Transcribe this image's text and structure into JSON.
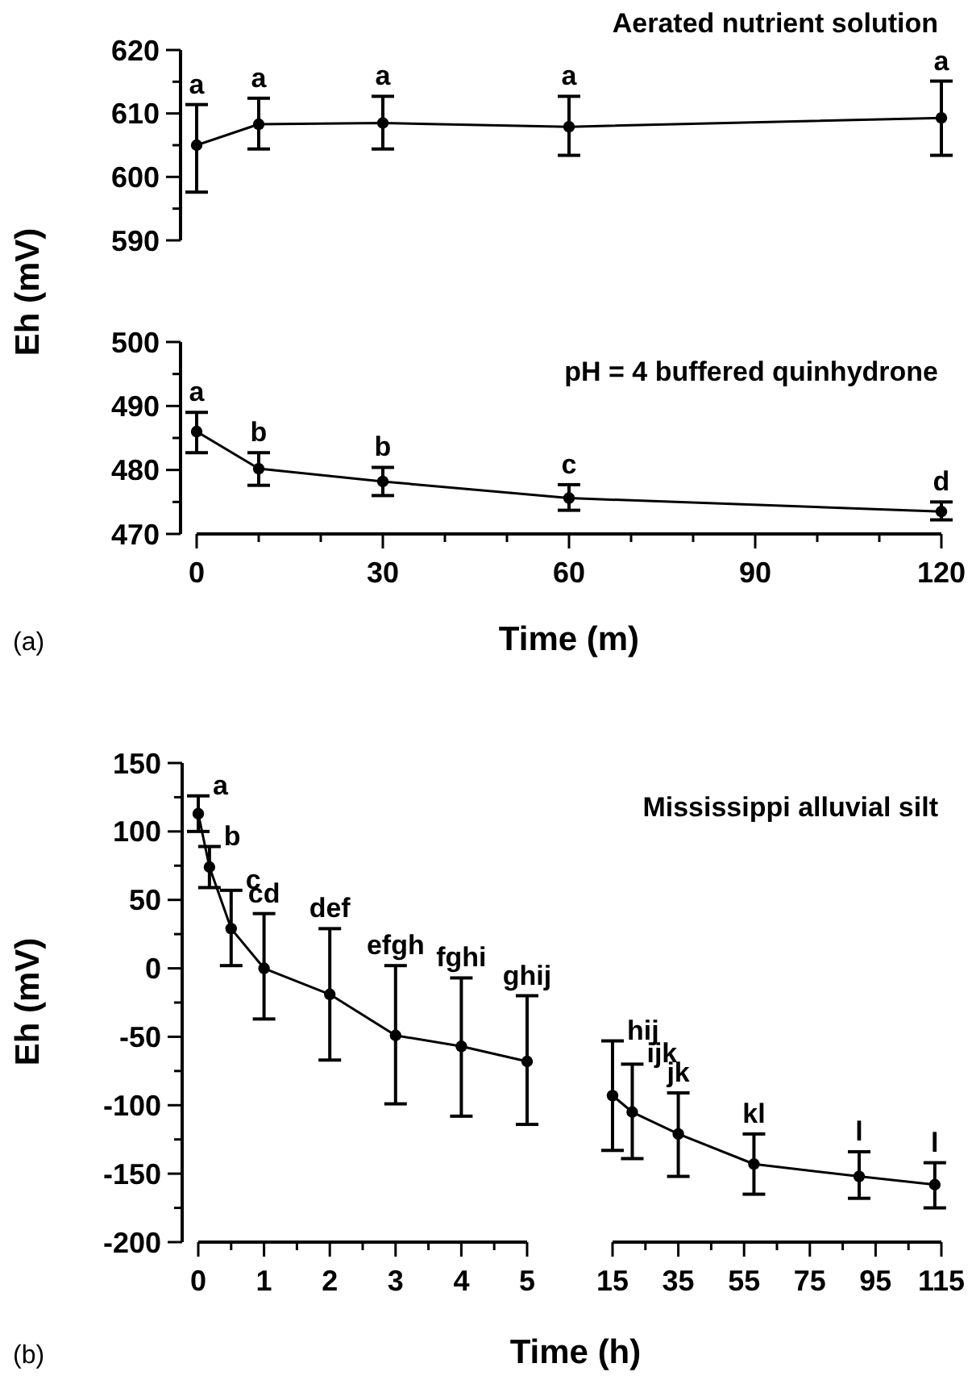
{
  "chart_data": [
    {
      "type": "line",
      "title": "Aerated nutrient solution",
      "ylabel": "Eh (mV)",
      "x": [
        0,
        10,
        30,
        60,
        120
      ],
      "series": [
        {
          "color": "#000000",
          "values": [
            605,
            608.3,
            608.5,
            607.9,
            609.3
          ],
          "errors": [
            [
              597.6,
              611.4
            ],
            [
              604.4,
              612.4
            ],
            [
              604.4,
              612.7
            ],
            [
              603.4,
              612.7
            ],
            [
              603.4,
              615.1
            ]
          ]
        }
      ],
      "xlim": [
        0,
        120
      ],
      "ylim": [
        590,
        620
      ],
      "yticks": [
        590,
        {
          "value": 595,
          "label": null
        },
        600,
        {
          "value": 605,
          "label": null
        },
        610,
        {
          "value": 615,
          "label": null
        },
        620
      ],
      "tick_labels": "y",
      "marker": "circle",
      "line_style": "solid",
      "annotations": [
        {
          "text": "a",
          "x": 0,
          "y": 611.4
        },
        {
          "text": "a",
          "x": 10,
          "y": 612.4
        },
        {
          "text": "a",
          "x": 30,
          "y": 612.7
        },
        {
          "text": "a",
          "x": 60,
          "y": 612.7
        },
        {
          "text": "a",
          "x": 120,
          "y": 615.1
        }
      ]
    },
    {
      "type": "line",
      "title": "pH = 4 buffered quinhydrone",
      "xlabel": "Time (m)",
      "x": [
        0,
        10,
        30,
        60,
        120
      ],
      "series": [
        {
          "color": "#000000",
          "values": [
            486,
            480.2,
            478.2,
            475.6,
            473.5
          ],
          "errors": [
            [
              482.7,
              489
            ],
            [
              477.6,
              482.7
            ],
            [
              476,
              480.4
            ],
            [
              473.7,
              477.7
            ],
            [
              472.2,
              475
            ]
          ]
        }
      ],
      "xlim": [
        0,
        120
      ],
      "xticks": [
        0,
        {
          "value": 10,
          "label": null
        },
        {
          "value": 20,
          "label": null
        },
        30,
        {
          "value": 40,
          "label": null
        },
        {
          "value": 50,
          "label": null
        },
        60,
        {
          "value": 70,
          "label": null
        },
        {
          "value": 80,
          "label": null
        },
        90,
        {
          "value": 100,
          "label": null
        },
        {
          "value": 110,
          "label": null
        },
        120
      ],
      "ylim": [
        470,
        500
      ],
      "yticks": [
        470,
        {
          "value": 475,
          "label": null
        },
        480,
        {
          "value": 485,
          "label": null
        },
        490,
        {
          "value": 495,
          "label": null
        },
        500
      ],
      "marker": "circle",
      "line_style": "solid",
      "annotations": [
        "(a)",
        {
          "text": "a",
          "x": 0,
          "y": 489
        },
        {
          "text": "b",
          "x": 10,
          "y": 482.7
        },
        {
          "text": "b",
          "x": 30,
          "y": 480.4
        },
        {
          "text": "c",
          "x": 60,
          "y": 477.7
        },
        {
          "text": "d",
          "x": 120,
          "y": 475
        }
      ]
    },
    {
      "type": "line",
      "ylabel": "Eh (mV)",
      "xlabel": "Time (h)",
      "x": [
        0,
        0.17,
        0.5,
        1,
        2,
        3,
        4,
        5
      ],
      "series": [
        {
          "color": "#000000",
          "values": [
            113,
            74,
            29,
            0,
            -19,
            -49,
            -57,
            -68
          ],
          "errors": [
            [
              100,
              126
            ],
            [
              59,
              89
            ],
            [
              2,
              57
            ],
            [
              -37,
              40
            ],
            [
              -67,
              29
            ],
            [
              -99,
              2
            ],
            [
              -108,
              -7
            ],
            [
              -114,
              -20
            ]
          ]
        }
      ],
      "xlim": [
        0,
        5
      ],
      "xticks": [
        0,
        {
          "value": 0.5,
          "label": null
        },
        1,
        {
          "value": 1.5,
          "label": null
        },
        2,
        {
          "value": 2.5,
          "label": null
        },
        3,
        {
          "value": 3.5,
          "label": null
        },
        4,
        {
          "value": 4.5,
          "label": null
        },
        5
      ],
      "ylim": [
        -200,
        150
      ],
      "yticks": [
        -200,
        {
          "value": -175,
          "label": null
        },
        -150,
        {
          "value": -125,
          "label": null
        },
        -100,
        {
          "value": -75,
          "label": null
        },
        -50,
        {
          "value": -25,
          "label": null
        },
        0,
        {
          "value": 25,
          "label": null
        },
        50,
        {
          "value": 75,
          "label": null
        },
        100,
        {
          "value": 125,
          "label": null
        },
        150
      ],
      "marker": "circle",
      "line_style": "solid",
      "annotations": [
        "(b)",
        {
          "text": "a",
          "x": 0,
          "y": 126
        },
        {
          "text": "b",
          "x": 0.17,
          "y": 89
        },
        {
          "text": "c",
          "x": 0.5,
          "y": 57
        },
        {
          "text": "cd",
          "x": 1,
          "y": 40
        },
        {
          "text": "def",
          "x": 2,
          "y": 29
        },
        {
          "text": "efgh",
          "x": 3,
          "y": 2
        },
        {
          "text": "fghi",
          "x": 4,
          "y": -7
        },
        {
          "text": "ghij",
          "x": 5,
          "y": -20
        }
      ]
    },
    {
      "type": "line",
      "title": "Mississippi alluvial silt",
      "x": [
        15,
        21,
        35,
        58,
        90,
        113
      ],
      "series": [
        {
          "color": "#000000",
          "values": [
            -93,
            -105,
            -121,
            -143,
            -152,
            -158
          ],
          "errors": [
            [
              -133,
              -53
            ],
            [
              -139,
              -70
            ],
            [
              -152,
              -91
            ],
            [
              -165,
              -121
            ],
            [
              -168,
              -134
            ],
            [
              -175,
              -142
            ]
          ]
        }
      ],
      "xlim": [
        15,
        115
      ],
      "xticks": [
        15,
        {
          "value": 25,
          "label": null
        },
        35,
        {
          "value": 45,
          "label": null
        },
        55,
        {
          "value": 65,
          "label": null
        },
        75,
        {
          "value": 85,
          "label": null
        },
        95,
        {
          "value": 105,
          "label": null
        },
        115
      ],
      "ylim": [
        -200,
        150
      ],
      "tick_labels": "x",
      "marker": "circle",
      "line_style": "solid",
      "annotations": [
        {
          "text": "hij",
          "x": 15,
          "y": -53
        },
        {
          "text": "ijk",
          "x": 21,
          "y": -70
        },
        {
          "text": "jk",
          "x": 35,
          "y": -91
        },
        {
          "text": "kl",
          "x": 58,
          "y": -121
        },
        {
          "text": "l",
          "x": 90,
          "y": -134
        },
        {
          "text": "l",
          "x": 113,
          "y": -142
        }
      ]
    }
  ]
}
